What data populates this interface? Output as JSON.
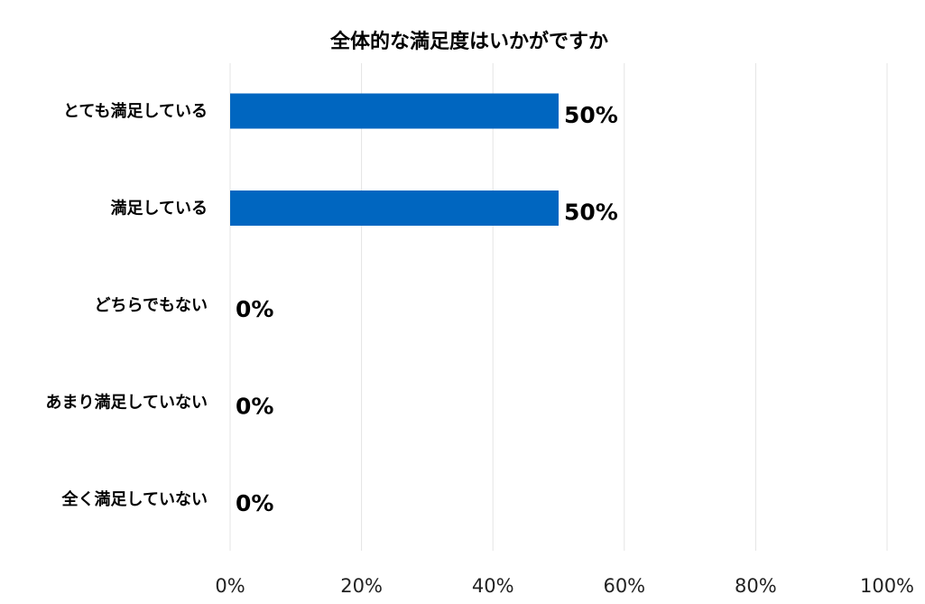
{
  "chart_data": {
    "type": "bar",
    "orientation": "horizontal",
    "title": "全体的な満足度はいかがですか",
    "categories": [
      "とても満足している",
      "満足している",
      "どちらでもない",
      "あまり満足していない",
      "全く満足していない"
    ],
    "values": [
      50,
      50,
      0,
      0,
      0
    ],
    "data_labels": [
      "50%",
      "50%",
      "0%",
      "0%",
      "0%"
    ],
    "xlim": [
      0,
      100
    ],
    "x_ticks": [
      0,
      20,
      40,
      60,
      80,
      100
    ],
    "x_tick_labels": [
      "0%",
      "20%",
      "40%",
      "60%",
      "80%",
      "100%"
    ],
    "grid": "vertical",
    "legend": "none",
    "bar_color": "#0066c0"
  }
}
